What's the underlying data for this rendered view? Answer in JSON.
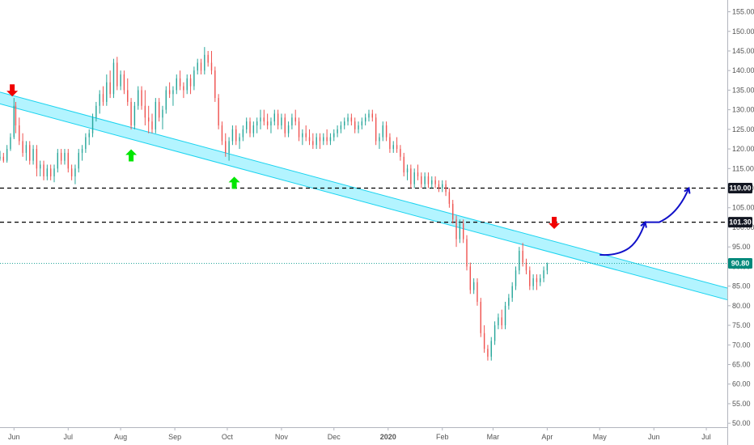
{
  "chart_data": {
    "type": "candlestick",
    "y_axis": {
      "position": "right",
      "ylim": [
        49,
        158
      ],
      "ticks": [
        "50.00",
        "55.00",
        "60.00",
        "65.00",
        "70.00",
        "75.00",
        "80.00",
        "85.00",
        "90.00",
        "95.00",
        "100.00",
        "105.00",
        "110.00",
        "115.00",
        "120.00",
        "125.00",
        "130.00",
        "135.00",
        "140.00",
        "145.00",
        "150.00",
        "155.00"
      ]
    },
    "x_axis": {
      "ticks": [
        "Jun",
        "Jul",
        "Aug",
        "Sep",
        "Oct",
        "Nov",
        "Dec",
        "2020",
        "Feb",
        "Mar",
        "Apr",
        "May",
        "Jun",
        "Jul"
      ],
      "x_values": [
        0,
        31,
        61,
        92,
        122,
        153,
        183,
        214,
        245,
        274,
        305,
        335,
        366,
        396
      ],
      "xlim": [
        -8,
        408
      ]
    },
    "colors": {
      "up": "#26a69a",
      "down": "#ef5350",
      "channel_fill": "#a6f2ff",
      "channel_edge": "#1ad3ef",
      "dashed_line": "#000000",
      "current_price_line": "#26a69a",
      "arrow_up": "#00e600",
      "arrow_down": "#f00000",
      "projection": "#1010c8",
      "price_tag_dark": "#131722",
      "price_tag_current": "#00897b"
    },
    "channel": {
      "upper": [
        [
          -8,
          134.5
        ],
        [
          408,
          84.5
        ]
      ],
      "lower": [
        [
          -8,
          131.5
        ],
        [
          408,
          81.5
        ]
      ]
    },
    "horizontal_levels": [
      {
        "value": 110.0,
        "label": "110.00",
        "style": "dashed"
      },
      {
        "value": 101.3,
        "label": "101.30",
        "style": "dashed"
      }
    ],
    "current_price": {
      "value": 90.8,
      "label": "90.80",
      "style": "dotted"
    },
    "markers": [
      {
        "type": "arrow-down",
        "x": -1,
        "y": 133.8
      },
      {
        "type": "arrow-up",
        "x": 67,
        "y": 119.5
      },
      {
        "type": "arrow-up",
        "x": 126,
        "y": 112.5
      },
      {
        "type": "arrow-down",
        "x": 309,
        "y": 100.0
      }
    ],
    "projection_path": [
      [
        335,
        93
      ],
      [
        344,
        92.7
      ],
      [
        357,
        96
      ],
      [
        361,
        101.3
      ],
      [
        369,
        101.3
      ],
      [
        380,
        103.5
      ],
      [
        386,
        110
      ]
    ],
    "candles": [
      [
        -8,
        117.5,
        119.5,
        117,
        118
      ],
      [
        -6,
        118,
        119,
        116.5,
        117
      ],
      [
        -4,
        117,
        121,
        116.5,
        120
      ],
      [
        -2,
        120,
        124,
        119.5,
        123
      ],
      [
        0,
        123,
        133,
        122.5,
        131
      ],
      [
        1,
        131,
        132,
        124,
        126
      ],
      [
        3,
        126,
        128,
        121,
        122
      ],
      [
        5,
        122,
        124,
        118,
        119
      ],
      [
        7,
        119,
        122,
        117,
        121
      ],
      [
        9,
        121,
        122,
        116,
        117
      ],
      [
        11,
        117,
        121,
        116,
        120
      ],
      [
        13,
        120,
        121,
        113,
        115
      ],
      [
        15,
        115,
        117,
        113,
        116
      ],
      [
        17,
        116,
        117,
        112,
        113
      ],
      [
        19,
        113,
        116,
        112,
        115
      ],
      [
        21,
        115,
        116,
        112,
        113
      ],
      [
        23,
        113,
        116,
        111.5,
        115
      ],
      [
        25,
        115,
        120,
        114,
        119
      ],
      [
        27,
        119,
        120,
        116,
        117
      ],
      [
        29,
        117,
        120,
        116,
        119
      ],
      [
        31,
        119,
        120,
        114,
        115
      ],
      [
        33,
        115,
        116,
        112,
        113
      ],
      [
        35,
        113,
        116,
        111,
        115
      ],
      [
        37,
        115,
        120,
        114,
        119
      ],
      [
        39,
        119,
        121,
        117,
        120
      ],
      [
        41,
        120,
        124,
        119,
        123
      ],
      [
        43,
        123,
        125,
        121,
        124
      ],
      [
        45,
        124,
        129,
        123,
        128
      ],
      [
        47,
        128,
        132,
        127,
        131
      ],
      [
        49,
        131,
        135,
        129,
        134
      ],
      [
        51,
        134,
        136,
        131,
        132
      ],
      [
        53,
        132,
        139,
        131,
        137
      ],
      [
        55,
        137,
        140,
        133,
        134
      ],
      [
        57,
        134,
        143,
        133,
        142
      ],
      [
        59,
        142,
        143.5,
        135,
        136
      ],
      [
        61,
        136,
        140,
        135,
        139
      ],
      [
        63,
        139,
        140,
        134,
        135
      ],
      [
        65,
        135,
        138,
        131,
        132
      ],
      [
        67,
        132,
        133,
        125,
        126
      ],
      [
        69,
        126,
        132,
        125,
        131
      ],
      [
        71,
        131,
        136,
        130,
        135
      ],
      [
        73,
        135,
        136,
        130,
        131
      ],
      [
        75,
        131,
        135,
        126,
        128
      ],
      [
        77,
        128,
        131,
        124,
        127
      ],
      [
        79,
        127,
        129,
        124,
        125
      ],
      [
        81,
        125,
        133,
        124,
        132
      ],
      [
        83,
        132,
        133,
        127,
        128
      ],
      [
        85,
        128,
        131,
        125,
        130
      ],
      [
        87,
        130,
        136,
        129,
        135
      ],
      [
        89,
        135,
        137,
        133,
        134
      ],
      [
        91,
        134,
        136,
        131,
        135
      ],
      [
        93,
        135,
        139,
        134,
        138
      ],
      [
        95,
        138,
        140,
        135,
        136
      ],
      [
        97,
        136,
        137,
        133,
        135
      ],
      [
        99,
        135,
        139,
        134,
        138
      ],
      [
        101,
        138,
        139,
        134,
        136
      ],
      [
        103,
        136,
        141,
        135,
        140
      ],
      [
        105,
        140,
        143,
        139,
        142
      ],
      [
        107,
        142,
        143,
        139,
        140
      ],
      [
        109,
        140,
        146,
        139,
        144
      ],
      [
        111,
        144,
        145,
        141,
        142
      ],
      [
        113,
        142,
        145,
        139,
        140
      ],
      [
        115,
        140,
        141,
        132,
        133
      ],
      [
        117,
        133,
        134,
        125,
        126
      ],
      [
        119,
        126,
        127,
        121,
        122
      ],
      [
        121,
        122,
        124,
        118,
        119
      ],
      [
        123,
        119,
        123,
        117,
        122
      ],
      [
        125,
        122,
        126,
        121,
        125
      ],
      [
        127,
        125,
        126,
        121,
        122
      ],
      [
        129,
        122,
        124,
        120,
        123
      ],
      [
        131,
        123,
        126,
        122,
        125
      ],
      [
        133,
        125,
        128,
        124,
        127
      ],
      [
        135,
        127,
        128,
        123,
        124
      ],
      [
        137,
        124,
        127,
        123,
        126
      ],
      [
        139,
        126,
        128,
        124,
        127
      ],
      [
        141,
        127,
        130,
        125,
        128
      ],
      [
        143,
        128,
        130,
        126,
        127
      ],
      [
        145,
        127,
        129,
        125,
        126
      ],
      [
        147,
        126,
        128,
        124,
        127
      ],
      [
        149,
        127,
        130,
        126,
        129
      ],
      [
        151,
        129,
        130,
        125,
        126
      ],
      [
        153,
        126,
        129,
        125,
        128
      ],
      [
        155,
        128,
        129,
        123,
        124
      ],
      [
        157,
        124,
        127,
        123,
        126
      ],
      [
        159,
        126,
        129,
        125,
        128
      ],
      [
        161,
        128,
        130,
        126,
        127
      ],
      [
        163,
        127,
        128,
        122,
        123
      ],
      [
        165,
        123,
        125,
        121,
        124
      ],
      [
        167,
        124,
        126,
        122,
        123
      ],
      [
        169,
        123,
        125,
        121,
        122
      ],
      [
        171,
        122,
        124,
        120,
        121
      ],
      [
        173,
        121,
        124,
        120,
        123
      ],
      [
        175,
        123,
        124,
        120,
        122
      ],
      [
        177,
        122,
        124,
        121,
        123
      ],
      [
        179,
        123,
        125,
        121,
        122
      ],
      [
        181,
        122,
        124,
        121,
        123
      ],
      [
        183,
        123,
        125,
        122,
        124
      ],
      [
        185,
        124,
        126,
        123,
        125
      ],
      [
        187,
        125,
        127,
        124,
        126
      ],
      [
        189,
        126,
        128,
        125,
        127
      ],
      [
        191,
        127,
        129,
        126,
        128
      ],
      [
        193,
        128,
        129,
        126,
        127
      ],
      [
        195,
        127,
        128,
        124,
        125
      ],
      [
        197,
        125,
        127,
        124,
        126
      ],
      [
        199,
        126,
        128,
        125,
        127
      ],
      [
        201,
        127,
        129,
        126,
        128
      ],
      [
        203,
        128,
        130,
        127,
        129
      ],
      [
        205,
        129,
        130,
        127,
        128
      ],
      [
        207,
        128,
        129,
        121,
        122
      ],
      [
        209,
        122,
        124,
        120,
        123
      ],
      [
        211,
        123,
        127,
        122,
        126
      ],
      [
        213,
        126,
        127,
        122,
        123
      ],
      [
        215,
        123,
        124,
        119,
        120
      ],
      [
        217,
        120,
        122,
        119,
        121
      ],
      [
        219,
        121,
        123,
        119,
        120
      ],
      [
        221,
        120,
        121,
        117,
        118
      ],
      [
        223,
        118,
        119,
        113,
        114
      ],
      [
        225,
        114,
        116,
        112,
        115
      ],
      [
        227,
        115,
        116,
        110,
        111
      ],
      [
        229,
        111,
        115,
        110,
        114
      ],
      [
        231,
        114,
        116,
        112,
        113
      ],
      [
        233,
        113,
        114,
        110,
        111
      ],
      [
        235,
        111,
        114,
        110,
        113
      ],
      [
        237,
        113,
        114,
        110,
        111
      ],
      [
        239,
        111,
        113,
        110,
        112
      ],
      [
        241,
        112,
        113,
        110,
        111
      ],
      [
        243,
        111,
        112,
        109,
        110
      ],
      [
        245,
        110,
        112,
        109,
        111
      ],
      [
        247,
        111,
        112,
        108,
        109
      ],
      [
        249,
        109,
        110,
        105,
        106
      ],
      [
        251,
        106,
        107,
        101,
        102
      ],
      [
        253,
        102,
        103,
        95,
        97
      ],
      [
        255,
        97,
        102,
        96,
        101
      ],
      [
        257,
        101,
        102,
        96,
        97
      ],
      [
        259,
        97,
        98,
        89,
        90
      ],
      [
        261,
        90,
        91,
        83,
        84
      ],
      [
        263,
        84,
        87,
        83,
        86
      ],
      [
        265,
        86,
        87,
        80,
        81
      ],
      [
        267,
        81,
        82,
        72,
        73
      ],
      [
        269,
        73,
        75,
        68,
        69
      ],
      [
        271,
        69,
        70,
        66,
        67
      ],
      [
        273,
        67,
        72,
        66,
        71
      ],
      [
        275,
        71,
        76,
        70,
        75
      ],
      [
        277,
        75,
        78,
        74,
        77
      ],
      [
        279,
        77,
        79,
        74,
        75
      ],
      [
        281,
        75,
        81,
        74,
        80
      ],
      [
        283,
        80,
        83,
        79,
        82
      ],
      [
        285,
        82,
        86,
        81,
        85
      ],
      [
        287,
        85,
        90,
        84,
        89
      ],
      [
        289,
        89,
        95,
        88,
        94
      ],
      [
        291,
        94,
        96,
        90,
        91
      ],
      [
        293,
        91,
        92,
        88,
        89
      ],
      [
        295,
        89,
        90,
        84,
        85
      ],
      [
        297,
        85,
        88,
        84,
        87
      ],
      [
        299,
        87,
        88,
        84,
        86
      ],
      [
        301,
        86,
        88,
        85,
        87
      ],
      [
        303,
        87,
        90,
        86,
        89
      ],
      [
        305,
        89,
        91,
        88,
        90.8
      ]
    ]
  }
}
